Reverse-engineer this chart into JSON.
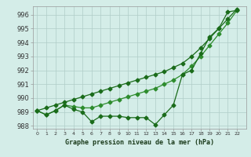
{
  "x": [
    0,
    1,
    2,
    3,
    4,
    5,
    6,
    7,
    8,
    9,
    10,
    11,
    12,
    13,
    14,
    15,
    16,
    17,
    18,
    19,
    20,
    21,
    22
  ],
  "y_flat": [
    989.1,
    988.8,
    989.1,
    989.5,
    989.2,
    989.0,
    988.3,
    988.7,
    988.7,
    988.7,
    988.6,
    988.6,
    988.6,
    988.1,
    988.8,
    989.5,
    991.7,
    992.0,
    993.2,
    994.4,
    995.0,
    996.2,
    996.3
  ],
  "y_mid": [
    989.1,
    988.8,
    989.1,
    989.5,
    989.4,
    989.3,
    989.3,
    989.5,
    989.7,
    989.9,
    990.1,
    990.3,
    990.5,
    990.7,
    991.0,
    991.3,
    991.7,
    992.3,
    993.0,
    993.8,
    994.6,
    995.4,
    996.3
  ],
  "y_top": [
    989.1,
    989.3,
    989.5,
    989.7,
    989.9,
    990.1,
    990.3,
    990.5,
    990.7,
    990.9,
    991.1,
    991.3,
    991.5,
    991.7,
    991.9,
    992.2,
    992.5,
    993.0,
    993.6,
    994.3,
    995.0,
    995.7,
    996.4
  ],
  "line_color1": "#1a6b1a",
  "line_color2": "#2d8c2d",
  "bg_color": "#d4ede8",
  "grid_color": "#b0ccc8",
  "axis_color": "#999999",
  "text_color": "#1a3a1a",
  "xlabel_label": "Graphe pression niveau de la mer (hPa)",
  "xlim": [
    -0.5,
    23
  ],
  "ylim": [
    987.8,
    996.6
  ],
  "yticks": [
    988,
    989,
    990,
    991,
    992,
    993,
    994,
    995,
    996
  ]
}
